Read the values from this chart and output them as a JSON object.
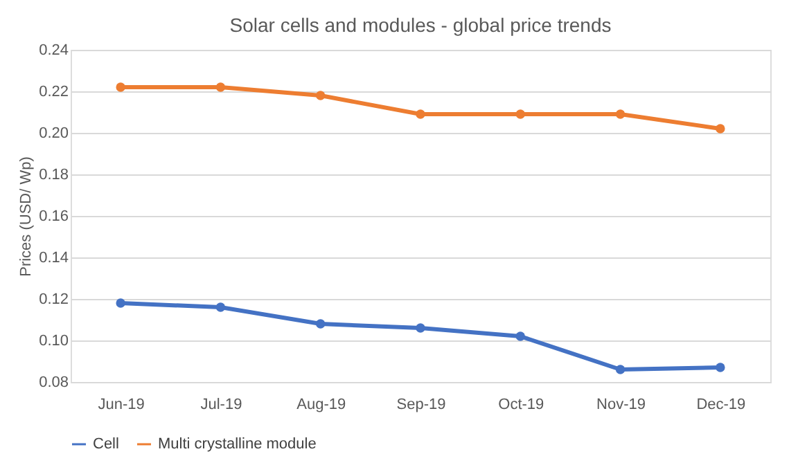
{
  "chart_data": {
    "type": "line",
    "title": "Solar cells and modules  - global price trends",
    "ylabel": "Prices (USD/ Wp)",
    "categories": [
      "Jun-19",
      "Jul-19",
      "Aug-19",
      "Sep-19",
      "Oct-19",
      "Nov-19",
      "Dec-19"
    ],
    "series": [
      {
        "name": "Cell",
        "color": "#4472c4",
        "values": [
          0.118,
          0.116,
          0.108,
          0.106,
          0.102,
          0.086,
          0.087
        ]
      },
      {
        "name": "Multi crystalline module",
        "color": "#ed7d31",
        "values": [
          0.222,
          0.222,
          0.218,
          0.209,
          0.209,
          0.209,
          0.202
        ]
      }
    ],
    "ylim": [
      0.08,
      0.24
    ],
    "yticks": [
      0.08,
      {
        "value": 0.1,
        "label": "0.10"
      },
      0.12,
      0.14,
      0.16,
      0.18,
      {
        "value": 0.2,
        "label": "0.20"
      },
      0.22,
      0.24
    ],
    "grid": "y",
    "legend": "bottom",
    "marker": "circle",
    "line_style": "solid"
  }
}
